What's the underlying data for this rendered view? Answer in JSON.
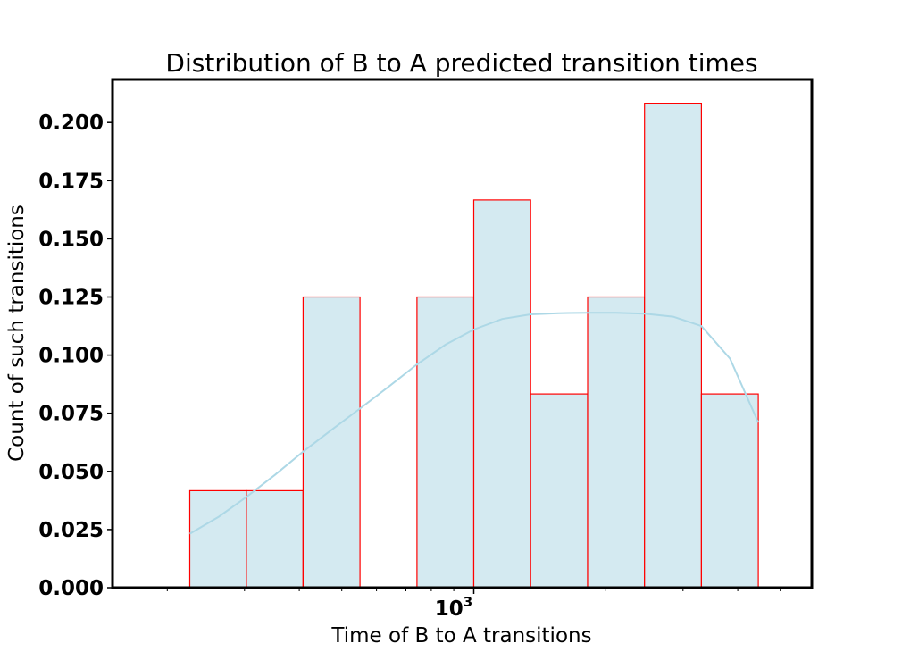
{
  "chart_data": {
    "type": "bar",
    "title": "Distribution of B to A predicted transition times",
    "xlabel": "Time of B to A transitions",
    "ylabel": "Count of such transitions",
    "x_scale": "log",
    "x_tick_base": "10",
    "x_tick_exponent": "3",
    "x_tick_value": 1000,
    "ylim": [
      0,
      0.2185
    ],
    "y_ticks": [
      "0.000",
      "0.025",
      "0.050",
      "0.075",
      "0.100",
      "0.125",
      "0.150",
      "0.175",
      "0.200"
    ],
    "bins": [
      {
        "x0": 225,
        "x1": 303,
        "value": 0.0417
      },
      {
        "x0": 303,
        "x1": 408,
        "value": 0.0417
      },
      {
        "x0": 408,
        "x1": 550,
        "value": 0.125
      },
      {
        "x0": 550,
        "x1": 742,
        "value": 0
      },
      {
        "x0": 742,
        "x1": 1000,
        "value": 0.125
      },
      {
        "x0": 1000,
        "x1": 1348,
        "value": 0.1667
      },
      {
        "x0": 1348,
        "x1": 1818,
        "value": 0.0833
      },
      {
        "x0": 1818,
        "x1": 2451,
        "value": 0.125
      },
      {
        "x0": 2451,
        "x1": 3305,
        "value": 0.2083
      },
      {
        "x0": 3305,
        "x1": 4456,
        "value": 0.0833
      }
    ],
    "kde": {
      "x": [
        225,
        262,
        303,
        352,
        408,
        475,
        550,
        640,
        742,
        862,
        1000,
        1160,
        1348,
        1560,
        1818,
        2110,
        2451,
        2850,
        3305,
        3840,
        4456
      ],
      "y": [
        0.0232,
        0.0305,
        0.039,
        0.0485,
        0.0585,
        0.068,
        0.077,
        0.0865,
        0.096,
        0.1045,
        0.111,
        0.1155,
        0.1175,
        0.118,
        0.1182,
        0.1182,
        0.1178,
        0.1165,
        0.1125,
        0.0985,
        0.071
      ]
    },
    "colors": {
      "bar_fill": "#d4eaf1",
      "bar_edge": "#ff0000",
      "kde_line": "#add8e6"
    }
  }
}
